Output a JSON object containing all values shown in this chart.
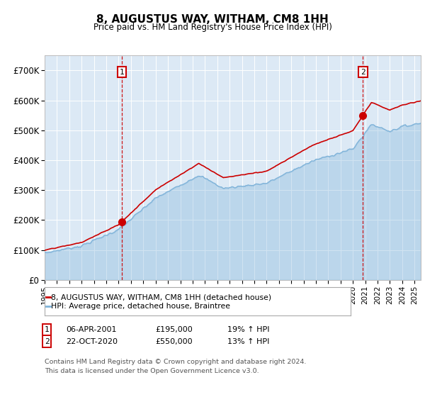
{
  "title": "8, AUGUSTUS WAY, WITHAM, CM8 1HH",
  "subtitle": "Price paid vs. HM Land Registry's House Price Index (HPI)",
  "legend_line1": "8, AUGUSTUS WAY, WITHAM, CM8 1HH (detached house)",
  "legend_line2": "HPI: Average price, detached house, Braintree",
  "footnote": "Contains HM Land Registry data © Crown copyright and database right 2024.\nThis data is licensed under the Open Government Licence v3.0.",
  "sale1_label": "1",
  "sale1_date_str": "06-APR-2001",
  "sale1_price_str": "£195,000",
  "sale1_hpi_str": "19% ↑ HPI",
  "sale1_date_num": 2001.27,
  "sale1_price": 195000,
  "sale2_label": "2",
  "sale2_date_str": "22-OCT-2020",
  "sale2_price_str": "£550,000",
  "sale2_hpi_str": "13% ↑ HPI",
  "sale2_date_num": 2020.81,
  "sale2_price": 550000,
  "background_color": "#dce9f5",
  "hpi_line_color": "#7fb3d9",
  "price_line_color": "#cc0000",
  "ylim": [
    0,
    750000
  ],
  "xlim_start": 1995.0,
  "xlim_end": 2025.5,
  "yticks": [
    0,
    100000,
    200000,
    300000,
    400000,
    500000,
    600000,
    700000
  ],
  "ytick_labels": [
    "£0",
    "£100K",
    "£200K",
    "£300K",
    "£400K",
    "£500K",
    "£600K",
    "£700K"
  ],
  "xticks": [
    1995,
    1996,
    1997,
    1998,
    1999,
    2000,
    2001,
    2002,
    2003,
    2004,
    2005,
    2006,
    2007,
    2008,
    2009,
    2010,
    2011,
    2012,
    2013,
    2014,
    2015,
    2016,
    2017,
    2018,
    2019,
    2020,
    2021,
    2022,
    2023,
    2024,
    2025
  ],
  "fig_width": 6.0,
  "fig_height": 5.6,
  "dpi": 100
}
